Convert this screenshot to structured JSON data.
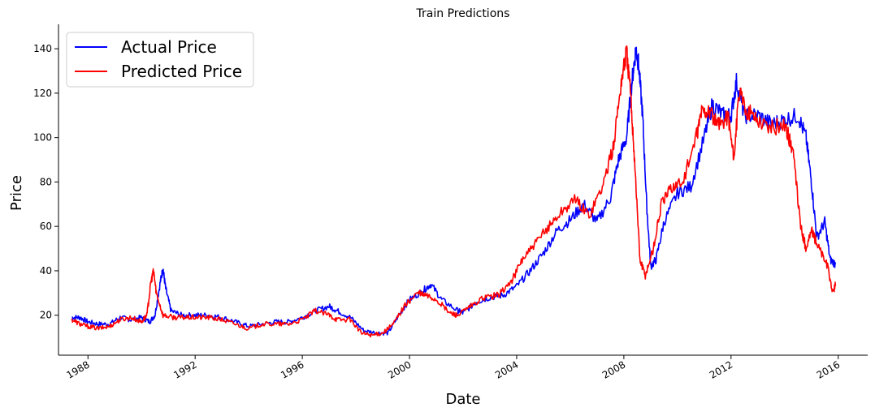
{
  "chart_data": {
    "type": "line",
    "title": "Train Predictions",
    "xlabel": "Date",
    "ylabel": "Price",
    "xlim": [
      1986.9,
      2017.1
    ],
    "ylim": [
      2,
      151
    ],
    "x_ticks": [
      {
        "value": 1988,
        "label": "1988"
      },
      {
        "value": 1992,
        "label": "1992"
      },
      {
        "value": 1996,
        "label": "1996"
      },
      {
        "value": 2000,
        "label": "2000"
      },
      {
        "value": 2004,
        "label": "2004"
      },
      {
        "value": 2008,
        "label": "2008"
      },
      {
        "value": 2012,
        "label": "2012"
      },
      {
        "value": 2016,
        "label": "2016"
      }
    ],
    "y_ticks": [
      {
        "value": 20,
        "label": "20"
      },
      {
        "value": 40,
        "label": "40"
      },
      {
        "value": 60,
        "label": "60"
      },
      {
        "value": 80,
        "label": "80"
      },
      {
        "value": 100,
        "label": "100"
      },
      {
        "value": 120,
        "label": "120"
      },
      {
        "value": 140,
        "label": "140"
      }
    ],
    "grid": false,
    "legend_position": "top-left",
    "series": [
      {
        "name": "Actual Price",
        "color": "#0000ff",
        "points": [
          [
            1987.4,
            19
          ],
          [
            1987.7,
            19
          ],
          [
            1988.0,
            17
          ],
          [
            1988.4,
            16
          ],
          [
            1988.8,
            16
          ],
          [
            1989.2,
            19
          ],
          [
            1989.6,
            18
          ],
          [
            1990.0,
            19
          ],
          [
            1990.3,
            17
          ],
          [
            1990.5,
            20
          ],
          [
            1990.7,
            35
          ],
          [
            1990.8,
            41
          ],
          [
            1990.9,
            32
          ],
          [
            1991.1,
            22
          ],
          [
            1991.5,
            20
          ],
          [
            1992.0,
            20
          ],
          [
            1992.5,
            20
          ],
          [
            1993.0,
            19
          ],
          [
            1993.5,
            17
          ],
          [
            1994.0,
            15
          ],
          [
            1994.5,
            16
          ],
          [
            1995.0,
            17
          ],
          [
            1995.5,
            17
          ],
          [
            1996.0,
            19
          ],
          [
            1996.5,
            22
          ],
          [
            1997.0,
            24
          ],
          [
            1997.3,
            22
          ],
          [
            1997.8,
            19
          ],
          [
            1998.3,
            13
          ],
          [
            1998.8,
            12
          ],
          [
            1999.2,
            12
          ],
          [
            1999.6,
            20
          ],
          [
            2000.0,
            27
          ],
          [
            2000.5,
            31
          ],
          [
            2000.8,
            34
          ],
          [
            2001.2,
            27
          ],
          [
            2001.8,
            22
          ],
          [
            2002.0,
            21
          ],
          [
            2002.5,
            26
          ],
          [
            2003.0,
            28
          ],
          [
            2003.5,
            29
          ],
          [
            2004.0,
            33
          ],
          [
            2004.5,
            40
          ],
          [
            2005.0,
            48
          ],
          [
            2005.5,
            58
          ],
          [
            2006.0,
            63
          ],
          [
            2006.5,
            70
          ],
          [
            2007.0,
            62
          ],
          [
            2007.5,
            73
          ],
          [
            2007.8,
            90
          ],
          [
            2008.1,
            100
          ],
          [
            2008.3,
            125
          ],
          [
            2008.45,
            140
          ],
          [
            2008.55,
            133
          ],
          [
            2008.7,
            110
          ],
          [
            2008.85,
            70
          ],
          [
            2009.0,
            42
          ],
          [
            2009.2,
            45
          ],
          [
            2009.5,
            62
          ],
          [
            2010.0,
            75
          ],
          [
            2010.5,
            78
          ],
          [
            2011.0,
            100
          ],
          [
            2011.3,
            115
          ],
          [
            2011.7,
            110
          ],
          [
            2012.0,
            110
          ],
          [
            2012.2,
            125
          ],
          [
            2012.5,
            110
          ],
          [
            2013.0,
            110
          ],
          [
            2013.5,
            106
          ],
          [
            2014.0,
            108
          ],
          [
            2014.5,
            110
          ],
          [
            2014.8,
            100
          ],
          [
            2015.0,
            80
          ],
          [
            2015.2,
            55
          ],
          [
            2015.5,
            62
          ],
          [
            2015.7,
            45
          ],
          [
            2015.9,
            43
          ]
        ]
      },
      {
        "name": "Predicted Price",
        "color": "#ff0000",
        "points": [
          [
            1987.4,
            18
          ],
          [
            1987.7,
            16
          ],
          [
            1988.0,
            15
          ],
          [
            1988.4,
            14
          ],
          [
            1988.8,
            15
          ],
          [
            1989.2,
            18
          ],
          [
            1989.6,
            19
          ],
          [
            1990.0,
            17
          ],
          [
            1990.2,
            20
          ],
          [
            1990.35,
            35
          ],
          [
            1990.45,
            40
          ],
          [
            1990.55,
            30
          ],
          [
            1990.8,
            20
          ],
          [
            1991.2,
            19
          ],
          [
            1991.6,
            19
          ],
          [
            1992.0,
            19
          ],
          [
            1992.5,
            19
          ],
          [
            1993.0,
            18
          ],
          [
            1993.5,
            16
          ],
          [
            1994.0,
            14
          ],
          [
            1994.5,
            16
          ],
          [
            1995.0,
            16
          ],
          [
            1995.5,
            16
          ],
          [
            1996.0,
            18
          ],
          [
            1996.5,
            22
          ],
          [
            1997.0,
            20
          ],
          [
            1997.3,
            18
          ],
          [
            1997.8,
            18
          ],
          [
            1998.2,
            12
          ],
          [
            1998.6,
            11
          ],
          [
            1999.0,
            12
          ],
          [
            1999.4,
            16
          ],
          [
            1999.8,
            24
          ],
          [
            2000.3,
            30
          ],
          [
            2000.6,
            29
          ],
          [
            2001.0,
            27
          ],
          [
            2001.5,
            21
          ],
          [
            2001.8,
            20
          ],
          [
            2002.3,
            24
          ],
          [
            2002.8,
            28
          ],
          [
            2003.3,
            29
          ],
          [
            2003.8,
            35
          ],
          [
            2004.2,
            45
          ],
          [
            2004.7,
            52
          ],
          [
            2005.2,
            60
          ],
          [
            2005.7,
            67
          ],
          [
            2006.2,
            72
          ],
          [
            2006.7,
            65
          ],
          [
            2007.2,
            78
          ],
          [
            2007.6,
            95
          ],
          [
            2007.9,
            125
          ],
          [
            2008.1,
            139
          ],
          [
            2008.25,
            120
          ],
          [
            2008.4,
            90
          ],
          [
            2008.6,
            45
          ],
          [
            2008.8,
            38
          ],
          [
            2009.1,
            50
          ],
          [
            2009.4,
            70
          ],
          [
            2009.8,
            78
          ],
          [
            2010.2,
            80
          ],
          [
            2010.7,
            100
          ],
          [
            2010.9,
            112
          ],
          [
            2011.2,
            112
          ],
          [
            2011.5,
            105
          ],
          [
            2011.9,
            110
          ],
          [
            2012.1,
            90
          ],
          [
            2012.3,
            120
          ],
          [
            2012.6,
            112
          ],
          [
            2013.0,
            108
          ],
          [
            2013.5,
            104
          ],
          [
            2014.0,
            106
          ],
          [
            2014.3,
            95
          ],
          [
            2014.6,
            60
          ],
          [
            2014.8,
            50
          ],
          [
            2015.0,
            58
          ],
          [
            2015.3,
            50
          ],
          [
            2015.6,
            42
          ],
          [
            2015.8,
            30
          ],
          [
            2015.9,
            34
          ]
        ]
      }
    ]
  }
}
